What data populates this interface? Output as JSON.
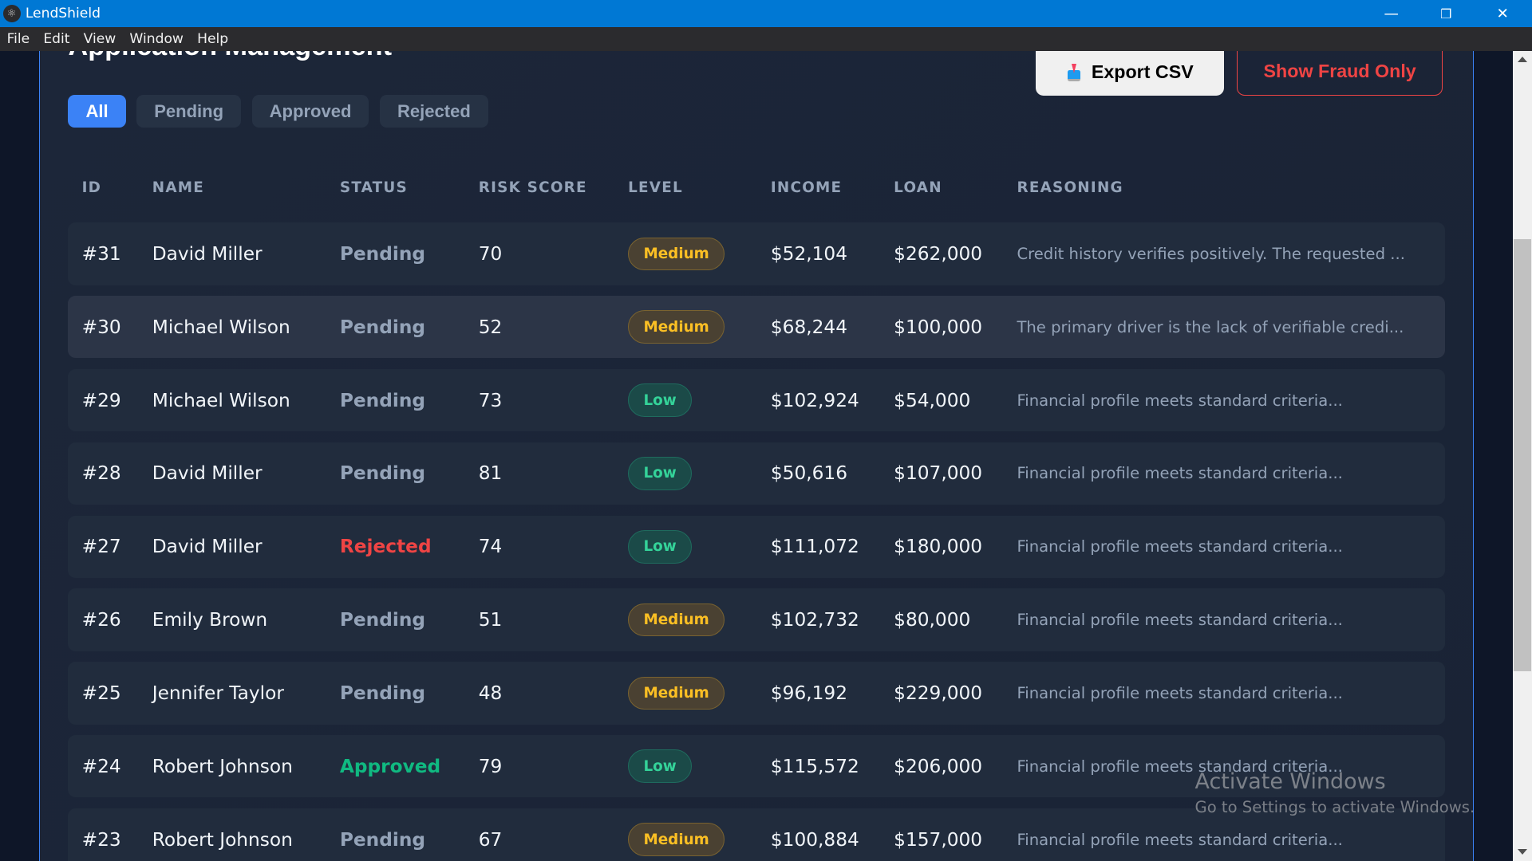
{
  "window": {
    "title": "LendShield",
    "minimize": "—",
    "restore": "❐",
    "close": "✕"
  },
  "menu": [
    "File",
    "Edit",
    "View",
    "Window",
    "Help"
  ],
  "page": {
    "title": "Application Management"
  },
  "filters": [
    {
      "label": "All",
      "active": true
    },
    {
      "label": "Pending"
    },
    {
      "label": "Approved"
    },
    {
      "label": "Rejected"
    }
  ],
  "actions": {
    "export": "Export CSV",
    "export_icon": "download-tray-icon",
    "fraud": "Show Fraud Only"
  },
  "columns": [
    "ID",
    "NAME",
    "STATUS",
    "RISK SCORE",
    "LEVEL",
    "INCOME",
    "LOAN",
    "REASONING"
  ],
  "colors": {
    "accent": "#3b82f6",
    "pending": "#94a3b8",
    "rejected": "#ef4444",
    "approved": "#10b981",
    "medium": "#fbbf24",
    "low": "#34d399"
  },
  "rows": [
    {
      "id": "#31",
      "name": "David Miller",
      "status": "Pending",
      "score": "70",
      "level": "Medium",
      "income": "$52,104",
      "loan": "$262,000",
      "reasoning": "Credit history verifies positively. The requested ..."
    },
    {
      "id": "#30",
      "name": "Michael Wilson",
      "status": "Pending",
      "score": "52",
      "level": "Medium",
      "income": "$68,244",
      "loan": "$100,000",
      "reasoning": "The primary driver is the lack of verifiable credi..."
    },
    {
      "id": "#29",
      "name": "Michael Wilson",
      "status": "Pending",
      "score": "73",
      "level": "Low",
      "income": "$102,924",
      "loan": "$54,000",
      "reasoning": "Financial profile meets standard criteria..."
    },
    {
      "id": "#28",
      "name": "David Miller",
      "status": "Pending",
      "score": "81",
      "level": "Low",
      "income": "$50,616",
      "loan": "$107,000",
      "reasoning": "Financial profile meets standard criteria..."
    },
    {
      "id": "#27",
      "name": "David Miller",
      "status": "Rejected",
      "score": "74",
      "level": "Low",
      "income": "$111,072",
      "loan": "$180,000",
      "reasoning": "Financial profile meets standard criteria..."
    },
    {
      "id": "#26",
      "name": "Emily Brown",
      "status": "Pending",
      "score": "51",
      "level": "Medium",
      "income": "$102,732",
      "loan": "$80,000",
      "reasoning": "Financial profile meets standard criteria..."
    },
    {
      "id": "#25",
      "name": "Jennifer Taylor",
      "status": "Pending",
      "score": "48",
      "level": "Medium",
      "income": "$96,192",
      "loan": "$229,000",
      "reasoning": "Financial profile meets standard criteria..."
    },
    {
      "id": "#24",
      "name": "Robert Johnson",
      "status": "Approved",
      "score": "79",
      "level": "Low",
      "income": "$115,572",
      "loan": "$206,000",
      "reasoning": "Financial profile meets standard criteria..."
    },
    {
      "id": "#23",
      "name": "Robert Johnson",
      "status": "Pending",
      "score": "67",
      "level": "Medium",
      "income": "$100,884",
      "loan": "$157,000",
      "reasoning": "Financial profile meets standard criteria..."
    }
  ],
  "watermark": {
    "title": "Activate Windows",
    "subtitle": "Go to Settings to activate Windows."
  }
}
